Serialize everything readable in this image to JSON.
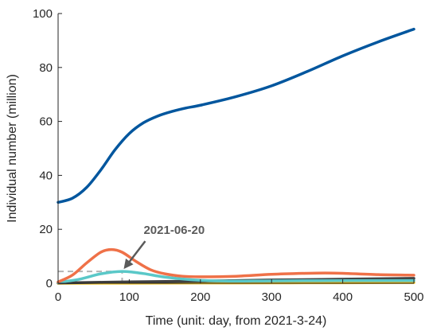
{
  "chart_data": {
    "type": "line",
    "xlabel": "Time (unit: day, from 2021-3-24)",
    "ylabel": "Individual number (million)",
    "xlim": [
      0,
      500
    ],
    "ylim": [
      0,
      100
    ],
    "xticks": [
      "0",
      "100",
      "200",
      "300",
      "400",
      "500"
    ],
    "yticks": [
      "0",
      "20",
      "40",
      "60",
      "80",
      "100"
    ],
    "grid": false,
    "legend": "none",
    "series": [
      {
        "color": "#00569e",
        "x": [
          0,
          20,
          40,
          60,
          80,
          100,
          120,
          140,
          160,
          180,
          200,
          250,
          300,
          350,
          400,
          450,
          500
        ],
        "values": [
          30,
          31.5,
          35.5,
          42,
          49.5,
          55.5,
          59.5,
          62,
          63.7,
          65,
          66,
          69.2,
          73.2,
          78.5,
          84.3,
          89.5,
          94.2
        ]
      },
      {
        "color": "#ef7148",
        "x": [
          0,
          20,
          40,
          60,
          75,
          90,
          110,
          130,
          150,
          175,
          200,
          250,
          300,
          350,
          375,
          400,
          450,
          500
        ],
        "values": [
          0.5,
          3,
          7.5,
          11.5,
          12.5,
          11.5,
          8,
          5,
          3.5,
          2.6,
          2.4,
          2.6,
          3.3,
          3.7,
          3.8,
          3.7,
          3.2,
          3
        ]
      },
      {
        "color": "#5ac8c8",
        "x": [
          0,
          30,
          60,
          90,
          120,
          150,
          200,
          250,
          300,
          400,
          500
        ],
        "values": [
          0.3,
          1.5,
          3.5,
          4.4,
          3.6,
          2.3,
          1.1,
          0.8,
          0.9,
          1.0,
          1.0
        ]
      },
      {
        "color": "#404040",
        "x": [
          0,
          100,
          200,
          300,
          400,
          500
        ],
        "values": [
          0.1,
          0.5,
          0.8,
          1.2,
          1.5,
          1.8
        ]
      },
      {
        "color": "#f0c020",
        "x": [
          0,
          100,
          200,
          300,
          400,
          500
        ],
        "values": [
          0,
          0.05,
          0.1,
          0.15,
          0.2,
          0.25
        ]
      }
    ],
    "reference_lines": [
      {
        "style": "dashed",
        "color": "#b4b4b4",
        "x": [
          0,
          90
        ],
        "values": [
          4.4,
          4.4
        ]
      },
      {
        "style": "dashed",
        "color": "#b4b4b4",
        "x": [
          90,
          90
        ],
        "values": [
          0,
          4.4
        ]
      }
    ],
    "annotation": {
      "text": "2021-06-20",
      "target": [
        90,
        4.4
      ],
      "color": "#5a5a5a"
    }
  }
}
